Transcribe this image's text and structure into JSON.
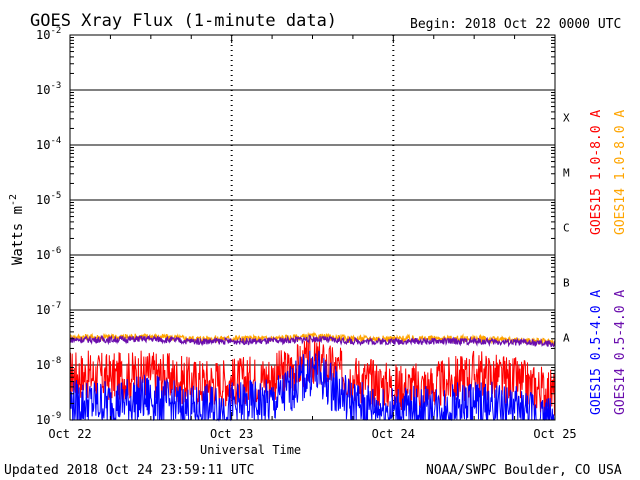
{
  "chart_data": {
    "type": "line",
    "title": "GOES Xray Flux (1-minute data)",
    "begin_label": "Begin:  2018 Oct 22 0000 UTC",
    "xlabel": "Universal Time",
    "ylabel": "Watts m",
    "ylabel_exponent": "-2",
    "log_y": true,
    "ylim": [
      1e-09,
      0.01
    ],
    "x_ticks": [
      "Oct 22",
      "Oct 23",
      "Oct 24",
      "Oct 25"
    ],
    "y_ticks": [
      {
        "mant": "10",
        "exp": "-9",
        "value": 1e-09
      },
      {
        "mant": "10",
        "exp": "-8",
        "value": 1e-08
      },
      {
        "mant": "10",
        "exp": "-7",
        "value": 1e-07
      },
      {
        "mant": "10",
        "exp": "-6",
        "value": 1e-06
      },
      {
        "mant": "10",
        "exp": "-5",
        "value": 1e-05
      },
      {
        "mant": "10",
        "exp": "-4",
        "value": 0.0001
      },
      {
        "mant": "10",
        "exp": "-3",
        "value": 0.001
      },
      {
        "mant": "10",
        "exp": "-2",
        "value": 0.01
      }
    ],
    "flare_classes": [
      {
        "label": "A",
        "value": 3.16e-08
      },
      {
        "label": "B",
        "value": 3.16e-07
      },
      {
        "label": "C",
        "value": 3.16e-06
      },
      {
        "label": "M",
        "value": 3.16e-05
      },
      {
        "label": "X",
        "value": 0.000316
      }
    ],
    "x_days": [
      0,
      0.25,
      0.5,
      0.75,
      1.0,
      1.25,
      1.5,
      1.75,
      2.0,
      2.25,
      2.5,
      2.75,
      3.0
    ],
    "x_units_note": "days after 2018 Oct 22 0000 UTC",
    "series": [
      {
        "name": "GOES15 1.0-8.0 A",
        "color": "#ff0000",
        "values": [
          7e-09,
          6e-09,
          7e-09,
          5e-09,
          5e-09,
          6e-09,
          1.2e-08,
          6e-09,
          4e-09,
          4e-09,
          7e-09,
          5e-09,
          3e-09
        ]
      },
      {
        "name": "GOES14 1.0-8.0 A",
        "color": "#ffa500",
        "values": [
          3.2e-08,
          3.2e-08,
          3.3e-08,
          3e-08,
          3e-08,
          3e-08,
          3.3e-08,
          3e-08,
          3e-08,
          3e-08,
          3e-08,
          2.8e-08,
          2.6e-08
        ]
      },
      {
        "name": "GOES15 0.5-4.0 A",
        "color": "#0000ff",
        "values": [
          2e-09,
          2e-09,
          2.5e-09,
          1.5e-09,
          1.8e-09,
          2e-09,
          8e-09,
          2e-09,
          1.5e-09,
          1.5e-09,
          2e-09,
          1.5e-09,
          1e-09
        ]
      },
      {
        "name": "GOES14 0.5-4.0 A",
        "color": "#6a0dad",
        "values": [
          2.9e-08,
          2.9e-08,
          3e-08,
          2.7e-08,
          2.7e-08,
          2.7e-08,
          3e-08,
          2.7e-08,
          2.7e-08,
          2.7e-08,
          2.7e-08,
          2.6e-08,
          2.4e-08
        ]
      }
    ],
    "legend_placement": "right"
  },
  "footer": {
    "updated": "Updated 2018 Oct 24 23:59:11 UTC",
    "credit": "NOAA/SWPC Boulder, CO USA"
  }
}
